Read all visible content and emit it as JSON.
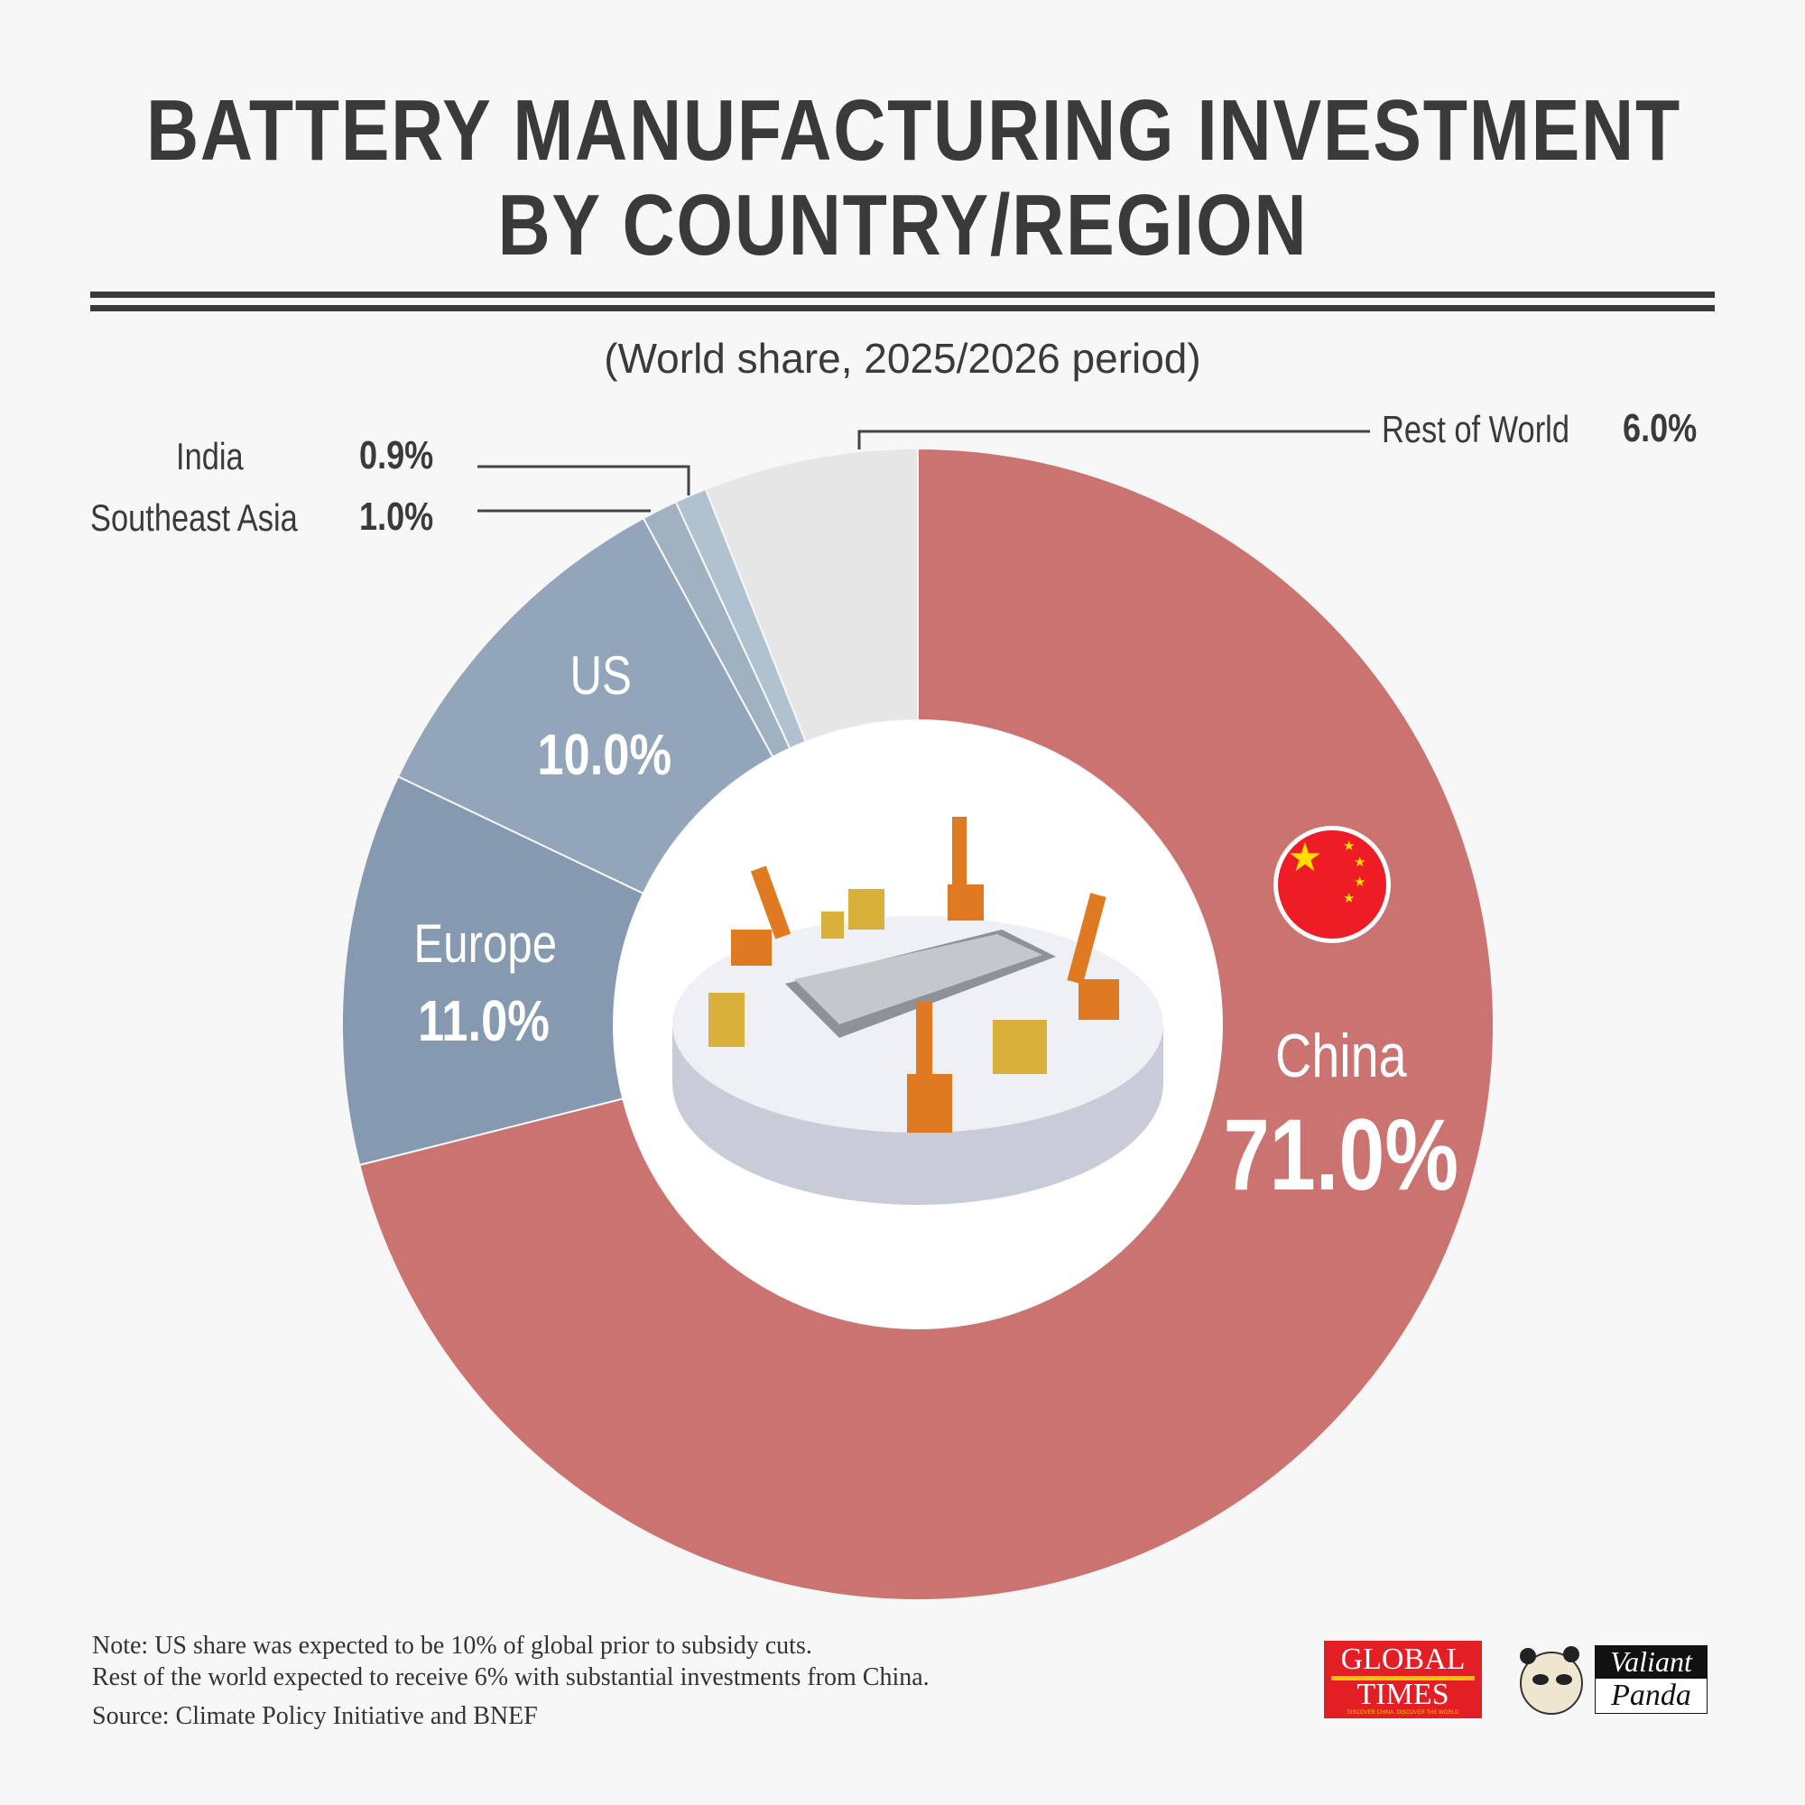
{
  "title_line1": "BATTERY MANUFACTURING INVESTMENT",
  "title_line2": "BY COUNTRY/REGION",
  "subtitle": "(World share, 2025/2026 period)",
  "chart_data": {
    "type": "pie",
    "variant": "donut",
    "title": "BATTERY MANUFACTURING INVESTMENT BY COUNTRY/REGION",
    "subtitle": "(World share, 2025/2026 period)",
    "unit": "%",
    "slices": [
      {
        "label": "China",
        "value": 71.0,
        "display": "71.0%",
        "color": "#cb7370"
      },
      {
        "label": "Europe",
        "value": 11.0,
        "display": "11.0%",
        "color": "#8599b0"
      },
      {
        "label": "US",
        "value": 10.0,
        "display": "10.0%",
        "color": "#93a5bb"
      },
      {
        "label": "Southeast Asia",
        "value": 1.0,
        "display": "1.0%",
        "color": "#a0b1c2"
      },
      {
        "label": "India",
        "value": 0.9,
        "display": "0.9%",
        "color": "#b0c2d0"
      },
      {
        "label": "Rest of World",
        "value": 6.0,
        "display": "6.0%",
        "color": "#e6e6e6"
      }
    ]
  },
  "center_image": "battery-factory-robots-illustration",
  "flag_icon": "china-flag-icon",
  "footer": {
    "note_line1": "Note: US share was expected to be 10% of global prior to subsidy cuts.",
    "note_line2": "Rest of the world expected to receive 6% with substantial investments from China.",
    "source": "Source: Climate Policy Initiative and BNEF"
  },
  "logos": {
    "global_times": {
      "line1": "GLOBAL",
      "line2": "TIMES",
      "tagline": "DISCOVER CHINA, DISCOVER THE WORLD",
      "color": "#e31e24"
    },
    "valiant_panda": {
      "line1": "Valiant",
      "line2": "Panda"
    }
  }
}
